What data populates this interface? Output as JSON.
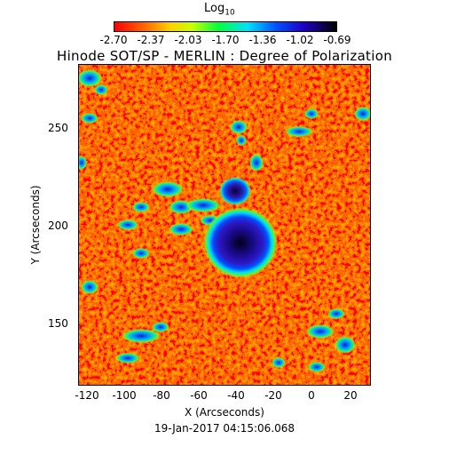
{
  "colorbar": {
    "title": "Log",
    "title_subscript": "10",
    "tick_labels": [
      "-2.70",
      "-2.37",
      "-2.03",
      "-1.70",
      "-1.36",
      "-1.02",
      "-0.69"
    ],
    "colors": [
      "#ff0000",
      "#ff5a00",
      "#ffd000",
      "#c8ff00",
      "#00ff40",
      "#00e0ff",
      "#0050ff",
      "#2000c8",
      "#000000"
    ]
  },
  "title": "Hinode SOT/SP - MERLIN : Degree of Polarization",
  "x_axis": {
    "label": "X (Arcseconds)",
    "ticks": [
      "-120",
      "-100",
      "-80",
      "-60",
      "-40",
      "-20",
      "0",
      "20"
    ]
  },
  "y_axis": {
    "label": "Y (Arcseconds)",
    "ticks": [
      "250",
      "200",
      "150"
    ]
  },
  "timestamp": "19-Jan-2017 04:15:06.068"
}
